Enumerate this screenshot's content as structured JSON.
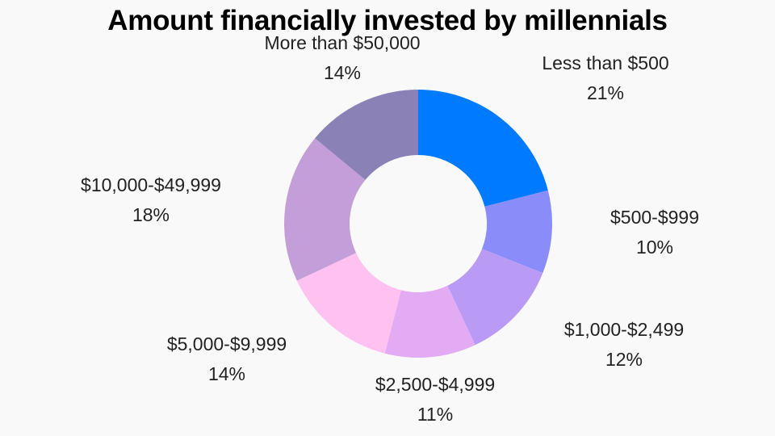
{
  "chart_data": {
    "type": "pie",
    "subtype": "donut",
    "title": "Amount financially invested by millennials",
    "legend": "none",
    "slices": [
      {
        "label": "Less than $500",
        "value": 21,
        "display": "21%",
        "color": "#007AFF"
      },
      {
        "label": "$500-$999",
        "value": 10,
        "display": "10%",
        "color": "#8A8CFA"
      },
      {
        "label": "$1,000-$2,499",
        "value": 12,
        "display": "12%",
        "color": "#B99AF5"
      },
      {
        "label": "$2,500-$4,999",
        "value": 11,
        "display": "11%",
        "color": "#E3ABF3"
      },
      {
        "label": "$5,000-$9,999",
        "value": 14,
        "display": "14%",
        "color": "#FEC1F0"
      },
      {
        "label": "$10,000-$49,999",
        "value": 18,
        "display": "18%",
        "color": "#C49ED8"
      },
      {
        "label": "More than $50,000",
        "value": 14,
        "display": "14%",
        "color": "#8A82B6"
      }
    ]
  }
}
